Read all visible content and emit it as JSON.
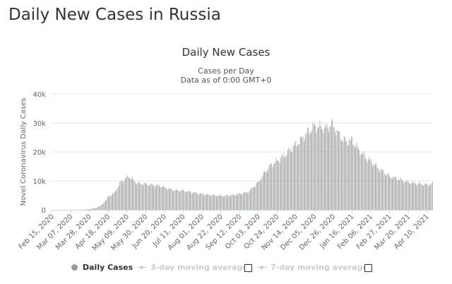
{
  "page": {
    "heading": "Daily New Cases in Russia"
  },
  "chart_data": {
    "type": "bar",
    "title": "Daily New Cases",
    "subtitle": [
      "Cases per Day",
      "Data as of 0:00 GMT+0"
    ],
    "xlabel": "",
    "ylabel": "Novel Coronavirus Daily Cases",
    "ylim": [
      0,
      40000
    ],
    "yticks": [
      0,
      10000,
      20000,
      30000,
      40000
    ],
    "ytick_labels": [
      "0",
      "10k",
      "20k",
      "30k",
      "40k"
    ],
    "grid": true,
    "x_start": "2020-02-15",
    "x_end": "2021-04-16",
    "xtick_labels": [
      "Feb 15, 2020",
      "Mar 07, 2020",
      "Mar 28, 2020",
      "Apr 18, 2020",
      "May 09, 2020",
      "May 30, 2020",
      "Jun 20, 2020",
      "Jul 11, 2020",
      "Aug 01, 2020",
      "Aug 22, 2020",
      "Sep 12, 2020",
      "Oct 03, 2020",
      "Oct 24, 2020",
      "Nov 14, 2020",
      "Dec 05, 2020",
      "Dec 26, 2020",
      "Jan 16, 2021",
      "Feb 06, 2021",
      "Feb 27, 2021",
      "Mar 20, 2021",
      "Apr 10, 2021"
    ],
    "series": [
      {
        "name": "Daily Cases",
        "color": "#999999",
        "points": [
          [
            "2020-02-15",
            0
          ],
          [
            "2020-03-07",
            0
          ],
          [
            "2020-03-20",
            50
          ],
          [
            "2020-03-28",
            230
          ],
          [
            "2020-04-04",
            600
          ],
          [
            "2020-04-11",
            1700
          ],
          [
            "2020-04-18",
            4500
          ],
          [
            "2020-04-25",
            5900
          ],
          [
            "2020-05-02",
            9600
          ],
          [
            "2020-05-06",
            10500
          ],
          [
            "2020-05-11",
            11600
          ],
          [
            "2020-05-15",
            10500
          ],
          [
            "2020-05-20",
            9200
          ],
          [
            "2020-05-30",
            8900
          ],
          [
            "2020-06-15",
            8200
          ],
          [
            "2020-06-30",
            6800
          ],
          [
            "2020-07-11",
            6600
          ],
          [
            "2020-07-20",
            6100
          ],
          [
            "2020-08-01",
            5400
          ],
          [
            "2020-08-15",
            5000
          ],
          [
            "2020-08-25",
            4800
          ],
          [
            "2020-09-05",
            5100
          ],
          [
            "2020-09-12",
            5500
          ],
          [
            "2020-09-22",
            6200
          ],
          [
            "2020-10-03",
            9500
          ],
          [
            "2020-10-10",
            12800
          ],
          [
            "2020-10-17",
            15500
          ],
          [
            "2020-10-24",
            16800
          ],
          [
            "2020-11-01",
            18700
          ],
          [
            "2020-11-07",
            20500
          ],
          [
            "2020-11-14",
            22500
          ],
          [
            "2020-11-21",
            24500
          ],
          [
            "2020-11-28",
            27100
          ],
          [
            "2020-12-05",
            28800
          ],
          [
            "2020-12-12",
            28500
          ],
          [
            "2020-12-19",
            28200
          ],
          [
            "2020-12-24",
            29900
          ],
          [
            "2020-12-30",
            27000
          ],
          [
            "2021-01-05",
            24500
          ],
          [
            "2021-01-10",
            23500
          ],
          [
            "2021-01-16",
            24000
          ],
          [
            "2021-01-23",
            20800
          ],
          [
            "2021-01-30",
            18500
          ],
          [
            "2021-02-06",
            16700
          ],
          [
            "2021-02-15",
            14200
          ],
          [
            "2021-02-27",
            11500
          ],
          [
            "2021-03-10",
            10500
          ],
          [
            "2021-03-20",
            9500
          ],
          [
            "2021-03-30",
            9000
          ],
          [
            "2021-04-10",
            8700
          ],
          [
            "2021-04-16",
            8900
          ]
        ]
      }
    ],
    "legend": {
      "placement": "bottom",
      "items": [
        {
          "label": "Daily Cases",
          "active": true
        },
        {
          "label": "3-day moving average",
          "active": false
        },
        {
          "label": "7-day moving average",
          "active": false
        }
      ]
    },
    "colors": {
      "bar": "#999999",
      "grid": "#e6e6e6",
      "legend_inactive": "#cccccc",
      "text": "#333333"
    }
  }
}
